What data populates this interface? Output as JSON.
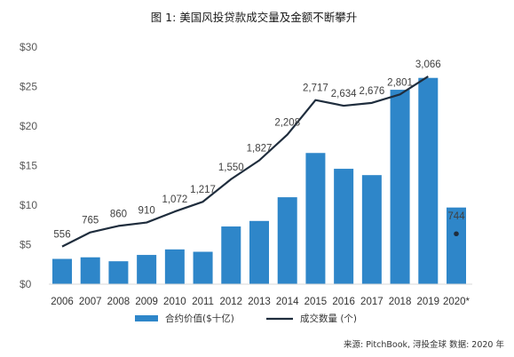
{
  "chart_data": {
    "type": "bar+line",
    "title": "图 1: 美国风投贷款成交量及金额不断攀升",
    "categories": [
      "2006",
      "2007",
      "2008",
      "2009",
      "2010",
      "2011",
      "2012",
      "2013",
      "2014",
      "2015",
      "2016",
      "2017",
      "2018",
      "2019",
      "2020*"
    ],
    "series": [
      {
        "name": "合约价值($十亿)",
        "type": "bar",
        "axis": "left",
        "color": "#2E86C9",
        "values": [
          3.2,
          3.4,
          2.9,
          3.7,
          4.4,
          4.1,
          7.3,
          8.0,
          11.0,
          16.6,
          14.6,
          13.8,
          24.6,
          26.1,
          9.7
        ]
      },
      {
        "name": "成交数量 (个)",
        "type": "line",
        "axis": "right",
        "color": "#1F2D3D",
        "values": [
          556,
          765,
          860,
          910,
          1072,
          1217,
          1550,
          1827,
          2208,
          2717,
          2634,
          2676,
          2801,
          3066,
          744
        ],
        "labels": [
          "556",
          "765",
          "860",
          "910",
          "1,072",
          "1,217",
          "1,550",
          "1,827",
          "2,208",
          "2,717",
          "2,634",
          "2,676",
          "2,801",
          "3,066",
          "744"
        ]
      }
    ],
    "y_left": {
      "ticks": [
        "$0",
        "$5",
        "$10",
        "$15",
        "$20",
        "$25",
        "$30"
      ],
      "ylim": [
        0,
        30
      ]
    },
    "y_right": {
      "ylim": [
        0,
        3500
      ]
    },
    "legend_position": "bottom",
    "grid": false,
    "source_note": "来源: PitchBook, 浔投金球  数据: 2020 年"
  }
}
